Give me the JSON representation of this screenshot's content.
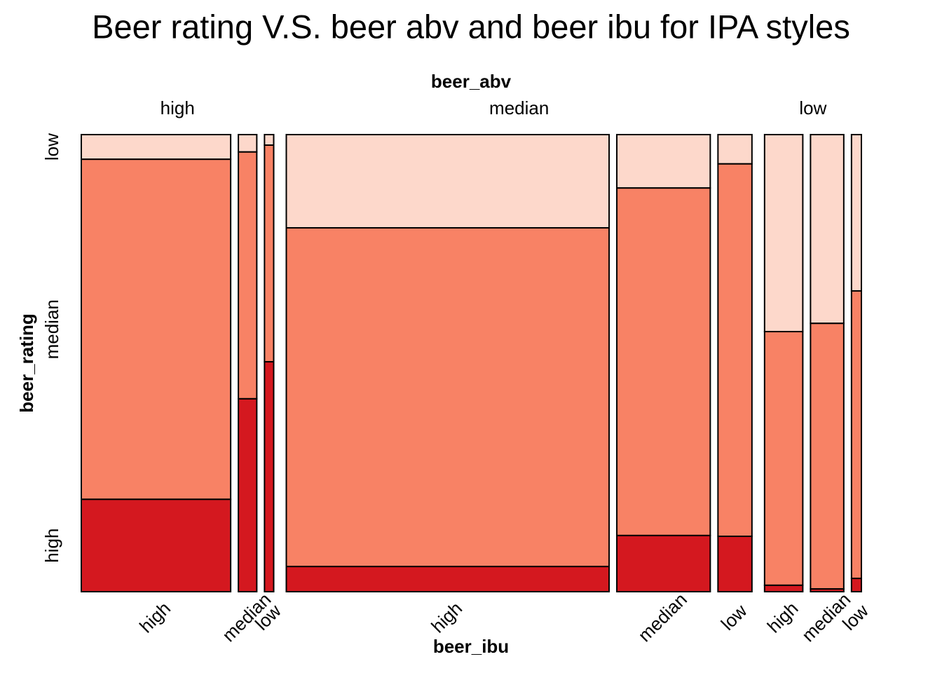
{
  "chart_data": {
    "type": "mosaic",
    "title": "Beer rating V.S. beer abv and beer ibu for IPA styles",
    "x_label": "beer_abv",
    "x2_label": "beer_ibu",
    "y_label": "beer_rating",
    "rating_levels": [
      "low",
      "median",
      "high"
    ],
    "rating_colors": [
      "#fdd8cb",
      "#f88265",
      "#d4181f"
    ],
    "groups": [
      {
        "label": "high",
        "columns": [
          {
            "label": "high",
            "share": 21.1,
            "rating": [
              5.4,
              74.4,
              20.2
            ]
          },
          {
            "label": "median",
            "share": 2.6,
            "rating": [
              3.8,
              54.0,
              42.2
            ]
          },
          {
            "label": "low",
            "share": 1.3,
            "rating": [
              2.3,
              47.4,
              50.3
            ]
          }
        ]
      },
      {
        "label": "median",
        "columns": [
          {
            "label": "high",
            "share": 45.6,
            "rating": [
              20.4,
              74.1,
              5.5
            ]
          },
          {
            "label": "median",
            "share": 13.2,
            "rating": [
              11.7,
              76.1,
              12.3
            ]
          },
          {
            "label": "low",
            "share": 4.8,
            "rating": [
              6.4,
              81.4,
              12.1
            ]
          }
        ]
      },
      {
        "label": "low",
        "columns": [
          {
            "label": "high",
            "share": 5.4,
            "rating": [
              43.1,
              55.5,
              1.4
            ]
          },
          {
            "label": "median",
            "share": 4.7,
            "rating": [
              41.3,
              58.1,
              0.6
            ]
          },
          {
            "label": "low",
            "share": 1.4,
            "rating": [
              34.2,
              62.9,
              2.9
            ]
          }
        ]
      }
    ]
  }
}
